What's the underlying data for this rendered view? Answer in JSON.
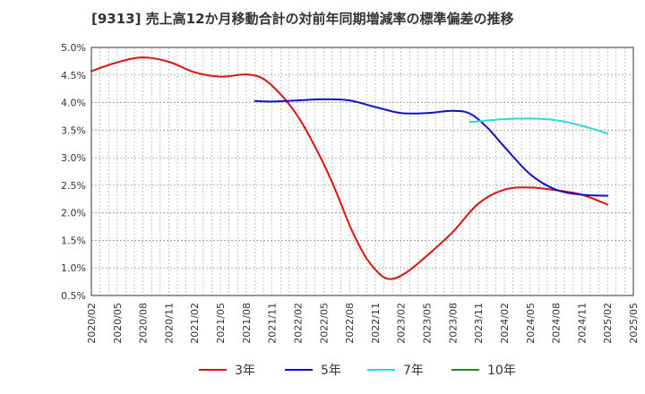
{
  "chart_data": {
    "type": "line",
    "title": "[9313]  売上高12か月移動合計の対前年同期増減率の標準偏差の推移",
    "xlabel": "",
    "ylabel": "",
    "ylim": [
      0.5,
      5.0
    ],
    "y_ticks": [
      "0.5%",
      "1.0%",
      "1.5%",
      "2.0%",
      "2.5%",
      "3.0%",
      "3.5%",
      "4.0%",
      "4.5%",
      "5.0%"
    ],
    "y_tick_values": [
      0.5,
      1.0,
      1.5,
      2.0,
      2.5,
      3.0,
      3.5,
      4.0,
      4.5,
      5.0
    ],
    "x_ticks": [
      "2020/02",
      "2020/05",
      "2020/08",
      "2020/11",
      "2021/02",
      "2021/05",
      "2021/08",
      "2021/11",
      "2022/02",
      "2022/05",
      "2022/08",
      "2022/11",
      "2023/02",
      "2023/05",
      "2023/08",
      "2023/11",
      "2024/02",
      "2024/05",
      "2024/08",
      "2024/11",
      "2025/02",
      "2025/05"
    ],
    "grid": true,
    "legend_position": "bottom",
    "series": [
      {
        "name": "3年",
        "color": "#dd1111",
        "points": [
          [
            "2020/02",
            4.57
          ],
          [
            "2020/05",
            4.73
          ],
          [
            "2020/08",
            4.82
          ],
          [
            "2020/11",
            4.74
          ],
          [
            "2021/02",
            4.55
          ],
          [
            "2021/05",
            4.47
          ],
          [
            "2021/08",
            4.51
          ],
          [
            "2021/10",
            4.43
          ],
          [
            "2021/12",
            4.15
          ],
          [
            "2022/02",
            3.75
          ],
          [
            "2022/04",
            3.2
          ],
          [
            "2022/06",
            2.55
          ],
          [
            "2022/08",
            1.78
          ],
          [
            "2022/09",
            1.45
          ],
          [
            "2022/10",
            1.17
          ],
          [
            "2022/11",
            0.97
          ],
          [
            "2022/12",
            0.83
          ],
          [
            "2023/01",
            0.8
          ],
          [
            "2023/02",
            0.86
          ],
          [
            "2023/03",
            0.96
          ],
          [
            "2023/05",
            1.22
          ],
          [
            "2023/08",
            1.65
          ],
          [
            "2023/11",
            2.17
          ],
          [
            "2024/02",
            2.42
          ],
          [
            "2024/05",
            2.46
          ],
          [
            "2024/08",
            2.41
          ],
          [
            "2024/11",
            2.33
          ],
          [
            "2025/02",
            2.15
          ]
        ]
      },
      {
        "name": "5年",
        "color": "#1111cc",
        "points": [
          [
            "2021/09",
            4.03
          ],
          [
            "2021/11",
            4.02
          ],
          [
            "2022/02",
            4.04
          ],
          [
            "2022/05",
            4.06
          ],
          [
            "2022/08",
            4.04
          ],
          [
            "2022/11",
            3.92
          ],
          [
            "2023/02",
            3.81
          ],
          [
            "2023/05",
            3.81
          ],
          [
            "2023/08",
            3.85
          ],
          [
            "2023/10",
            3.8
          ],
          [
            "2023/12",
            3.55
          ],
          [
            "2024/02",
            3.2
          ],
          [
            "2024/05",
            2.7
          ],
          [
            "2024/08",
            2.42
          ],
          [
            "2024/11",
            2.33
          ],
          [
            "2025/02",
            2.31
          ]
        ]
      },
      {
        "name": "7年",
        "color": "#22dddd",
        "points": [
          [
            "2023/10",
            3.65
          ],
          [
            "2023/11",
            3.66
          ],
          [
            "2024/02",
            3.7
          ],
          [
            "2024/05",
            3.71
          ],
          [
            "2024/08",
            3.68
          ],
          [
            "2024/11",
            3.58
          ],
          [
            "2025/02",
            3.44
          ]
        ]
      },
      {
        "name": "10年",
        "color": "#228822",
        "points": []
      }
    ]
  }
}
